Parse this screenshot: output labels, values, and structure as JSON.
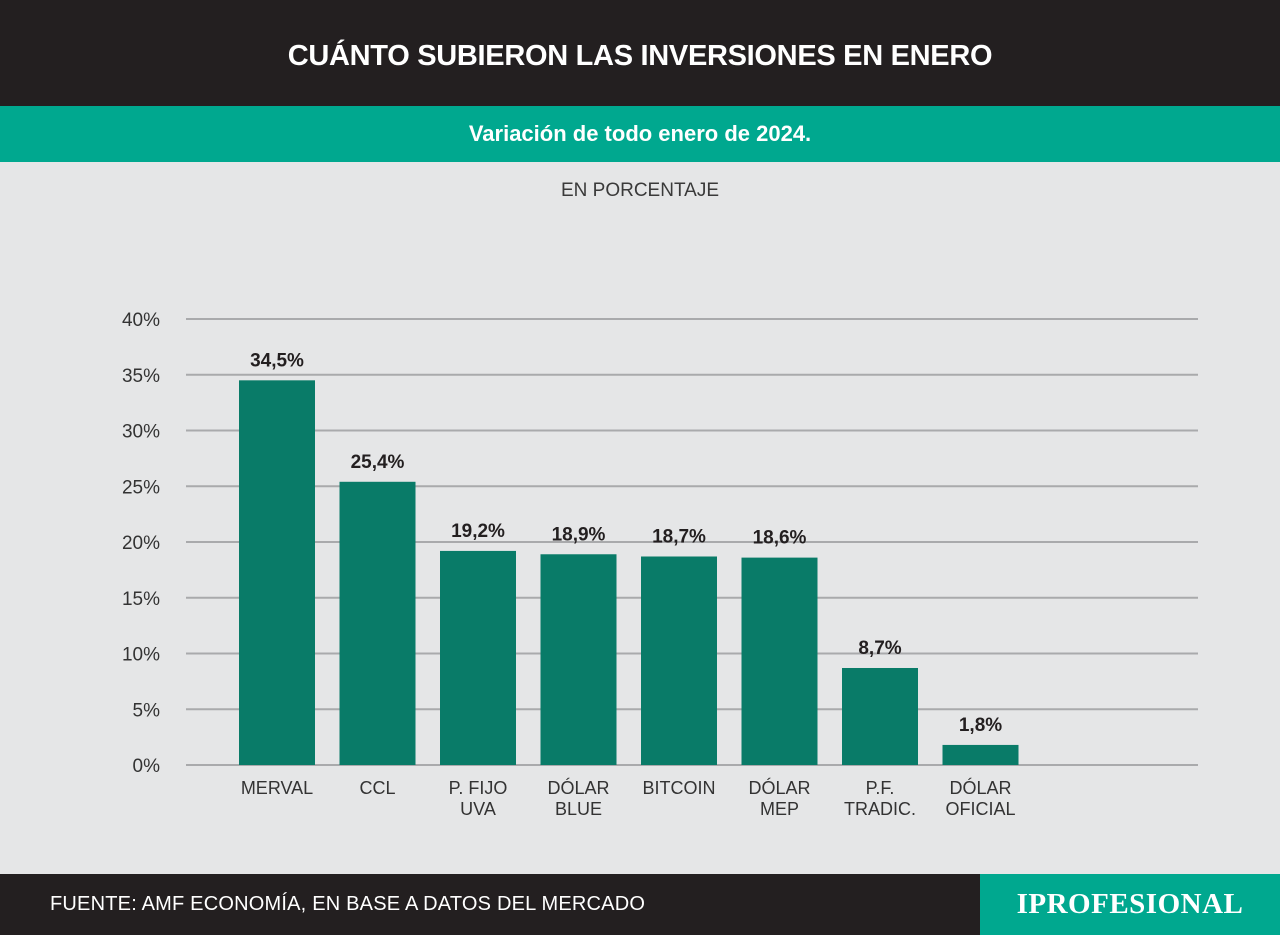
{
  "header": {
    "title": "CUÁNTO SUBIERON LAS INVERSIONES EN ENERO"
  },
  "subheader": {
    "title": "Variación de todo enero de 2024."
  },
  "chart_data": {
    "type": "bar",
    "title": "CUÁNTO SUBIERON LAS INVERSIONES EN ENERO",
    "subtitle": "Variación de todo enero de 2024.",
    "unit_label": "EN PORCENTAJE",
    "categories": [
      [
        "MERVAL"
      ],
      [
        "CCL"
      ],
      [
        "P. FIJO",
        "UVA"
      ],
      [
        "DÓLAR",
        "BLUE"
      ],
      [
        "BITCOIN"
      ],
      [
        "DÓLAR",
        "MEP"
      ],
      [
        "P.F.",
        "TRADIC."
      ],
      [
        "DÓLAR",
        "OFICIAL"
      ]
    ],
    "values": [
      34.5,
      25.4,
      19.2,
      18.9,
      18.7,
      18.6,
      8.7,
      1.8
    ],
    "value_labels": [
      "34,5%",
      "25,4%",
      "19,2%",
      "18,9%",
      "18,7%",
      "18,6%",
      "8,7%",
      "1,8%"
    ],
    "y_ticks": [
      0,
      5,
      10,
      15,
      20,
      25,
      30,
      35,
      40
    ],
    "y_tick_labels": [
      "0%",
      "5%",
      "10%",
      "15%",
      "20%",
      "25%",
      "30%",
      "35%",
      "40%"
    ],
    "ylim": [
      0,
      40
    ],
    "grid": true,
    "legend": false,
    "bar_color": "#097b68"
  },
  "footer": {
    "source": "FUENTE: AMF ECONOMÍA, EN BASE A DATOS DEL MERCADO",
    "brand": "IPROFESIONAL"
  },
  "colors": {
    "header_bg": "#231f20",
    "accent": "#00a88f",
    "bar": "#097b68",
    "background": "#e5e6e7",
    "grid": "#a9aaac"
  }
}
